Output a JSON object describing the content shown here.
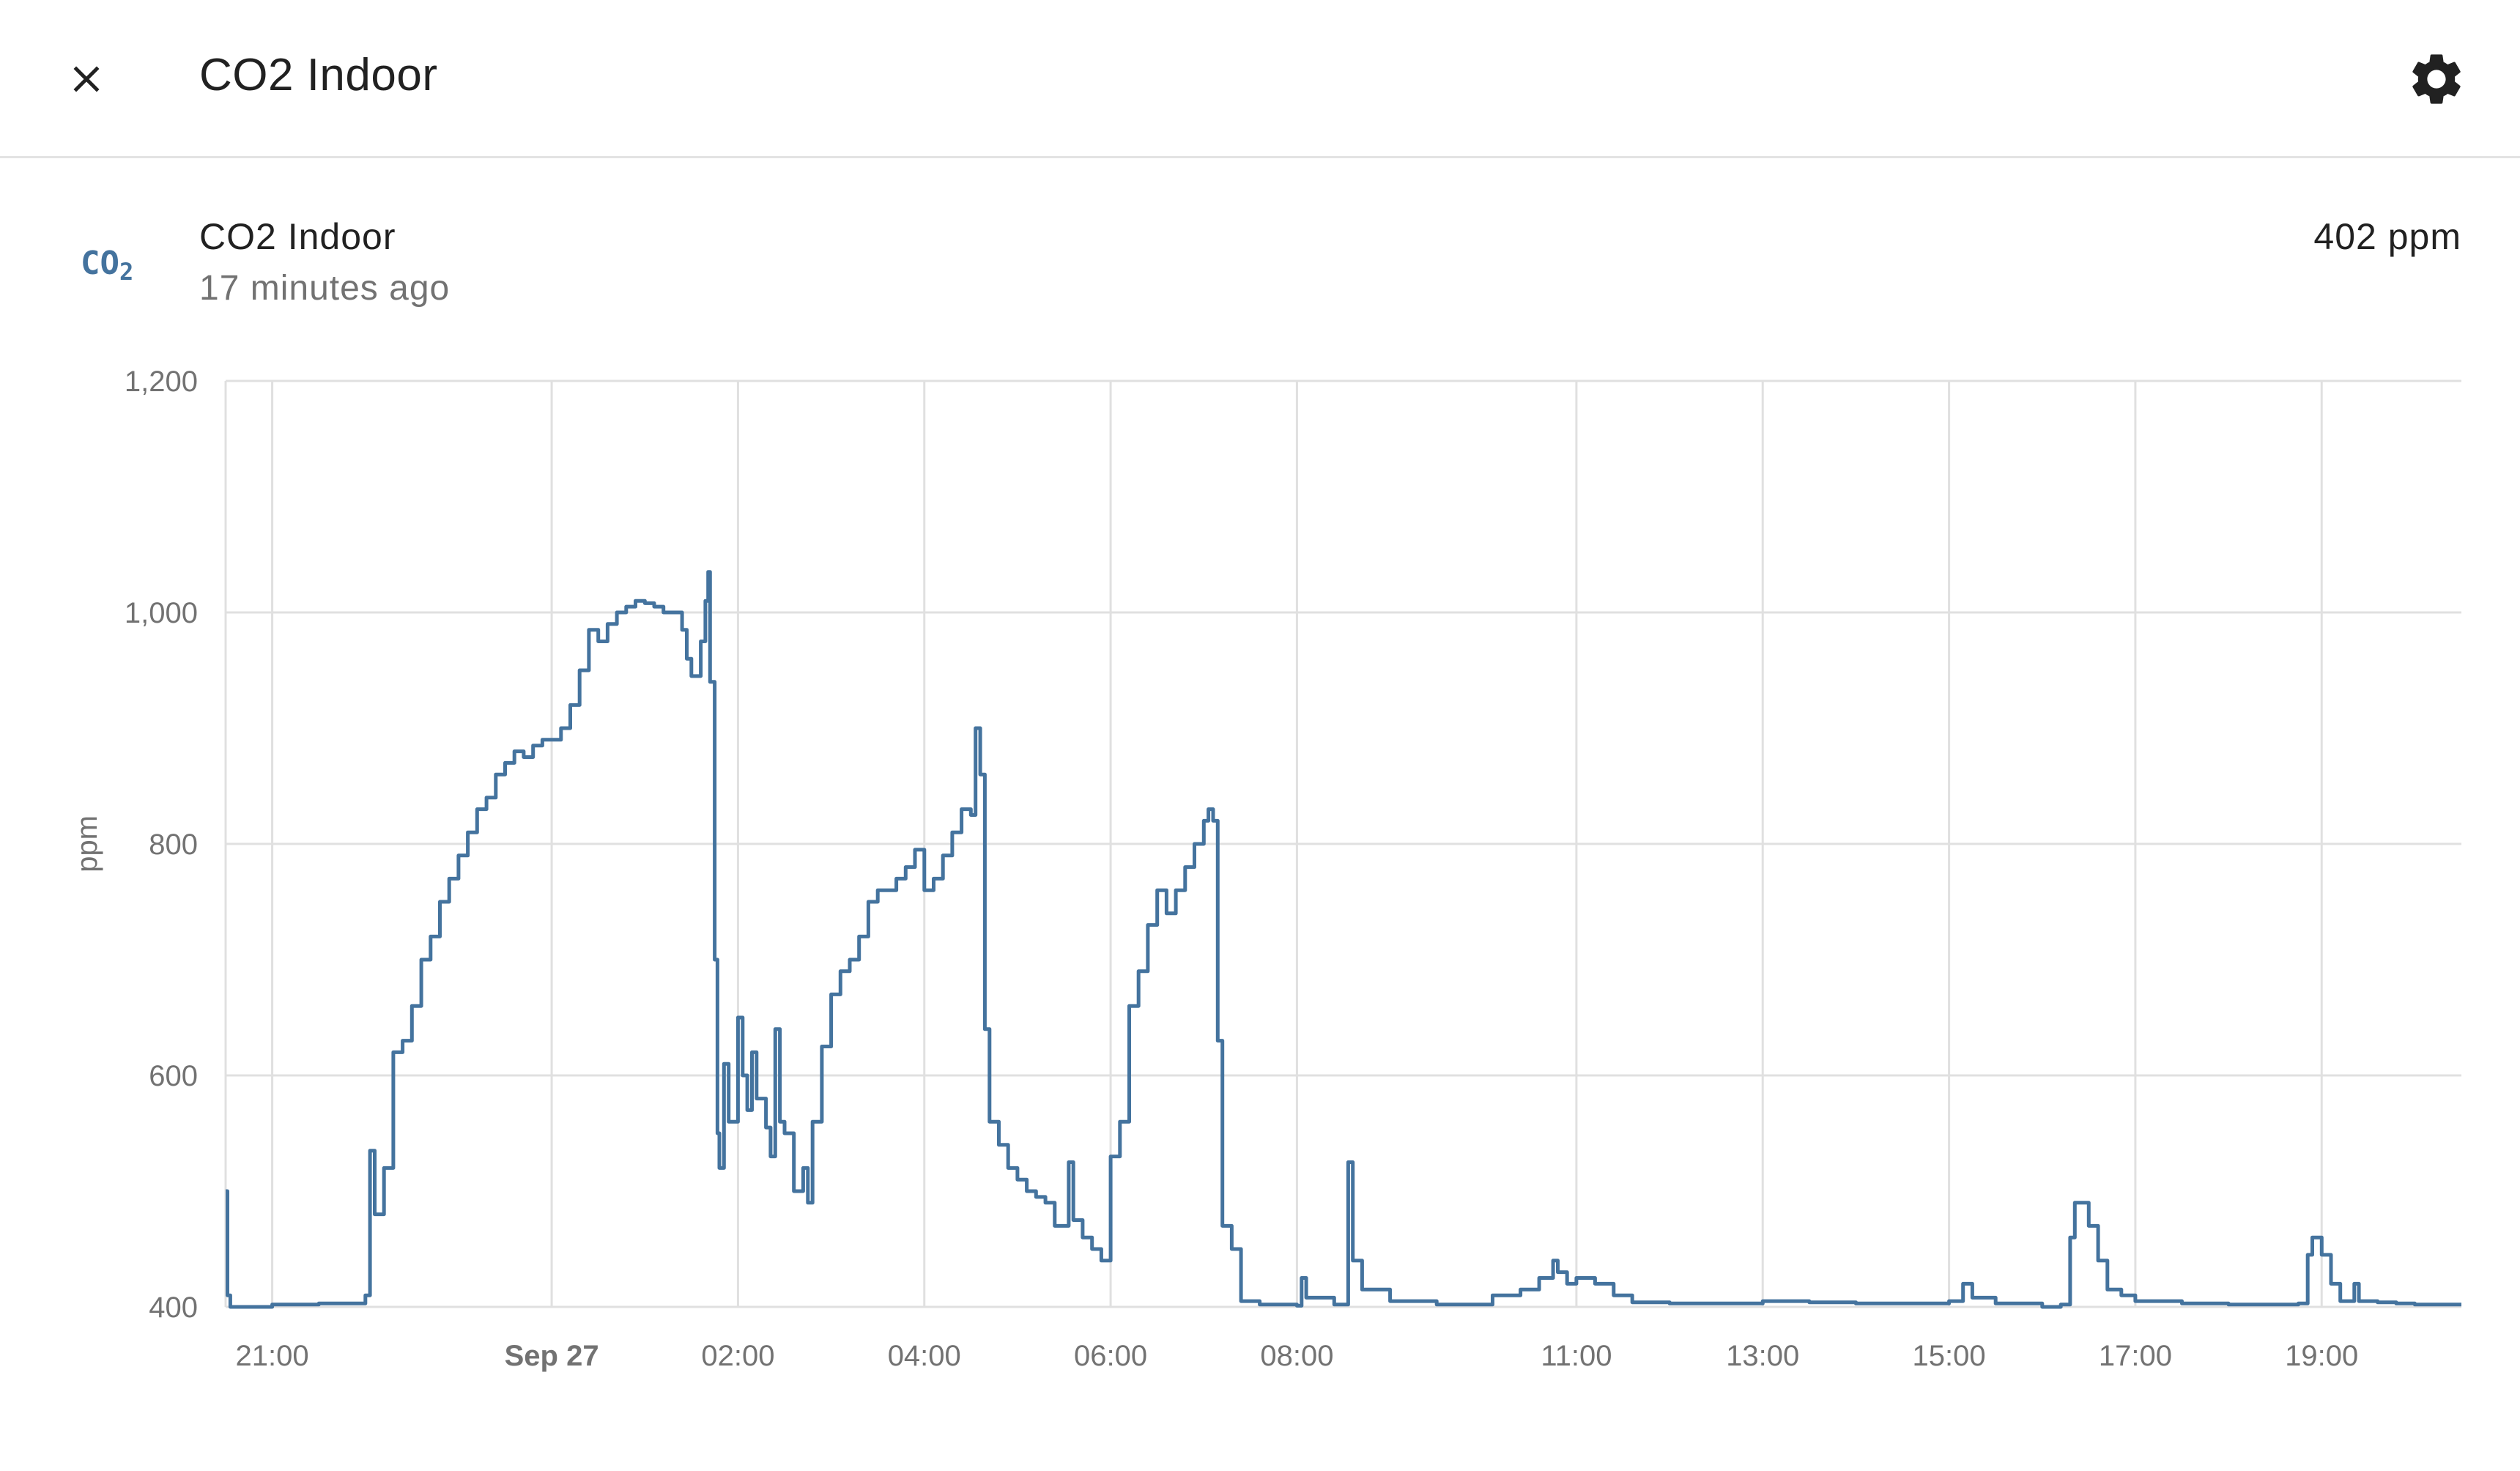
{
  "header": {
    "title": "CO2 Indoor",
    "close_icon": "close-icon",
    "settings_icon": "gear-icon"
  },
  "entity": {
    "icon": "molecule-co2-icon",
    "icon_text": "CO",
    "icon_sub": "2",
    "name": "CO2 Indoor",
    "last_changed": "17 minutes ago",
    "state": "402 ppm"
  },
  "colors": {
    "line": "#44739e",
    "grid": "#e0e0e0",
    "text": "#212121",
    "secondary": "#727272"
  },
  "chart_data": {
    "type": "line",
    "title": "",
    "xlabel": "",
    "ylabel": "ppm",
    "grid": true,
    "ylim": [
      400,
      1200
    ],
    "xlim_hours": [
      20.5,
      44.5
    ],
    "yticks": [
      {
        "value": 1200,
        "label": "1,200"
      },
      {
        "value": 1000,
        "label": "1,000"
      },
      {
        "value": 800,
        "label": "800"
      },
      {
        "value": 600,
        "label": "600"
      },
      {
        "value": 400,
        "label": "400"
      }
    ],
    "xticks": [
      {
        "hour": 21,
        "label": "21:00",
        "bold": false
      },
      {
        "hour": 24,
        "label": "Sep 27",
        "bold": true
      },
      {
        "hour": 26,
        "label": "02:00",
        "bold": false
      },
      {
        "hour": 28,
        "label": "04:00",
        "bold": false
      },
      {
        "hour": 30,
        "label": "06:00",
        "bold": false
      },
      {
        "hour": 32,
        "label": "08:00",
        "bold": false
      },
      {
        "hour": 35,
        "label": "11:00",
        "bold": false
      },
      {
        "hour": 37,
        "label": "13:00",
        "bold": false
      },
      {
        "hour": 39,
        "label": "15:00",
        "bold": false
      },
      {
        "hour": 41,
        "label": "17:00",
        "bold": false
      },
      {
        "hour": 43,
        "label": "19:00",
        "bold": false
      }
    ],
    "series": [
      {
        "name": "CO2 Indoor",
        "points": [
          [
            20.5,
            500
          ],
          [
            20.52,
            410
          ],
          [
            20.55,
            400
          ],
          [
            21.0,
            402
          ],
          [
            21.5,
            403
          ],
          [
            21.95,
            403
          ],
          [
            22.0,
            410
          ],
          [
            22.05,
            535
          ],
          [
            22.1,
            480
          ],
          [
            22.2,
            520
          ],
          [
            22.3,
            620
          ],
          [
            22.4,
            630
          ],
          [
            22.5,
            660
          ],
          [
            22.6,
            700
          ],
          [
            22.7,
            720
          ],
          [
            22.8,
            750
          ],
          [
            22.9,
            770
          ],
          [
            23.0,
            790
          ],
          [
            23.1,
            810
          ],
          [
            23.2,
            830
          ],
          [
            23.3,
            840
          ],
          [
            23.4,
            860
          ],
          [
            23.5,
            870
          ],
          [
            23.6,
            880
          ],
          [
            23.7,
            875
          ],
          [
            23.8,
            885
          ],
          [
            23.9,
            890
          ],
          [
            24.0,
            890
          ],
          [
            24.1,
            900
          ],
          [
            24.2,
            920
          ],
          [
            24.3,
            950
          ],
          [
            24.4,
            985
          ],
          [
            24.5,
            975
          ],
          [
            24.6,
            990
          ],
          [
            24.7,
            1000
          ],
          [
            24.8,
            1005
          ],
          [
            24.9,
            1010
          ],
          [
            25.0,
            1008
          ],
          [
            25.1,
            1005
          ],
          [
            25.2,
            1000
          ],
          [
            25.3,
            1000
          ],
          [
            25.4,
            985
          ],
          [
            25.45,
            960
          ],
          [
            25.5,
            945
          ],
          [
            25.6,
            975
          ],
          [
            25.65,
            1010
          ],
          [
            25.68,
            1035
          ],
          [
            25.7,
            940
          ],
          [
            25.75,
            700
          ],
          [
            25.78,
            550
          ],
          [
            25.8,
            520
          ],
          [
            25.85,
            610
          ],
          [
            25.9,
            560
          ],
          [
            25.95,
            560
          ],
          [
            26.0,
            650
          ],
          [
            26.05,
            600
          ],
          [
            26.1,
            570
          ],
          [
            26.15,
            620
          ],
          [
            26.2,
            580
          ],
          [
            26.3,
            555
          ],
          [
            26.35,
            530
          ],
          [
            26.4,
            640
          ],
          [
            26.45,
            560
          ],
          [
            26.5,
            550
          ],
          [
            26.6,
            500
          ],
          [
            26.7,
            520
          ],
          [
            26.75,
            490
          ],
          [
            26.8,
            560
          ],
          [
            26.9,
            625
          ],
          [
            27.0,
            670
          ],
          [
            27.1,
            690
          ],
          [
            27.2,
            700
          ],
          [
            27.3,
            720
          ],
          [
            27.4,
            750
          ],
          [
            27.5,
            760
          ],
          [
            27.6,
            760
          ],
          [
            27.7,
            770
          ],
          [
            27.8,
            780
          ],
          [
            27.9,
            795
          ],
          [
            28.0,
            760
          ],
          [
            28.1,
            770
          ],
          [
            28.2,
            790
          ],
          [
            28.3,
            810
          ],
          [
            28.4,
            830
          ],
          [
            28.5,
            825
          ],
          [
            28.55,
            900
          ],
          [
            28.6,
            860
          ],
          [
            28.65,
            640
          ],
          [
            28.7,
            560
          ],
          [
            28.8,
            540
          ],
          [
            28.9,
            520
          ],
          [
            29.0,
            510
          ],
          [
            29.1,
            500
          ],
          [
            29.2,
            495
          ],
          [
            29.3,
            490
          ],
          [
            29.4,
            470
          ],
          [
            29.5,
            470
          ],
          [
            29.55,
            525
          ],
          [
            29.6,
            475
          ],
          [
            29.7,
            460
          ],
          [
            29.8,
            450
          ],
          [
            29.9,
            440
          ],
          [
            30.0,
            530
          ],
          [
            30.1,
            560
          ],
          [
            30.2,
            660
          ],
          [
            30.3,
            690
          ],
          [
            30.4,
            730
          ],
          [
            30.5,
            760
          ],
          [
            30.6,
            740
          ],
          [
            30.7,
            760
          ],
          [
            30.8,
            780
          ],
          [
            30.9,
            800
          ],
          [
            31.0,
            820
          ],
          [
            31.05,
            830
          ],
          [
            31.1,
            820
          ],
          [
            31.15,
            630
          ],
          [
            31.2,
            470
          ],
          [
            31.3,
            450
          ],
          [
            31.4,
            405
          ],
          [
            31.6,
            402
          ],
          [
            32.0,
            401
          ],
          [
            32.05,
            425
          ],
          [
            32.1,
            408
          ],
          [
            32.4,
            402
          ],
          [
            32.5,
            402
          ],
          [
            32.55,
            525
          ],
          [
            32.6,
            440
          ],
          [
            32.7,
            415
          ],
          [
            33.0,
            405
          ],
          [
            33.5,
            402
          ],
          [
            34.0,
            402
          ],
          [
            34.1,
            410
          ],
          [
            34.4,
            415
          ],
          [
            34.6,
            425
          ],
          [
            34.75,
            440
          ],
          [
            34.8,
            430
          ],
          [
            34.9,
            420
          ],
          [
            35.0,
            425
          ],
          [
            35.2,
            420
          ],
          [
            35.4,
            410
          ],
          [
            35.6,
            404
          ],
          [
            36.0,
            403
          ],
          [
            36.5,
            403
          ],
          [
            37.0,
            405
          ],
          [
            37.5,
            404
          ],
          [
            38.0,
            403
          ],
          [
            38.5,
            403
          ],
          [
            38.85,
            403
          ],
          [
            39.0,
            405
          ],
          [
            39.15,
            420
          ],
          [
            39.25,
            408
          ],
          [
            39.5,
            403
          ],
          [
            39.9,
            403
          ],
          [
            40.0,
            400
          ],
          [
            40.2,
            402
          ],
          [
            40.3,
            460
          ],
          [
            40.35,
            490
          ],
          [
            40.5,
            470
          ],
          [
            40.6,
            440
          ],
          [
            40.7,
            415
          ],
          [
            40.85,
            410
          ],
          [
            41.0,
            405
          ],
          [
            41.5,
            403
          ],
          [
            42.0,
            402
          ],
          [
            42.5,
            402
          ],
          [
            42.75,
            403
          ],
          [
            42.85,
            445
          ],
          [
            42.9,
            460
          ],
          [
            43.0,
            445
          ],
          [
            43.1,
            420
          ],
          [
            43.2,
            405
          ],
          [
            43.35,
            420
          ],
          [
            43.4,
            405
          ],
          [
            43.6,
            404
          ],
          [
            43.8,
            403
          ],
          [
            44.0,
            402
          ],
          [
            44.5,
            402
          ]
        ]
      }
    ]
  }
}
